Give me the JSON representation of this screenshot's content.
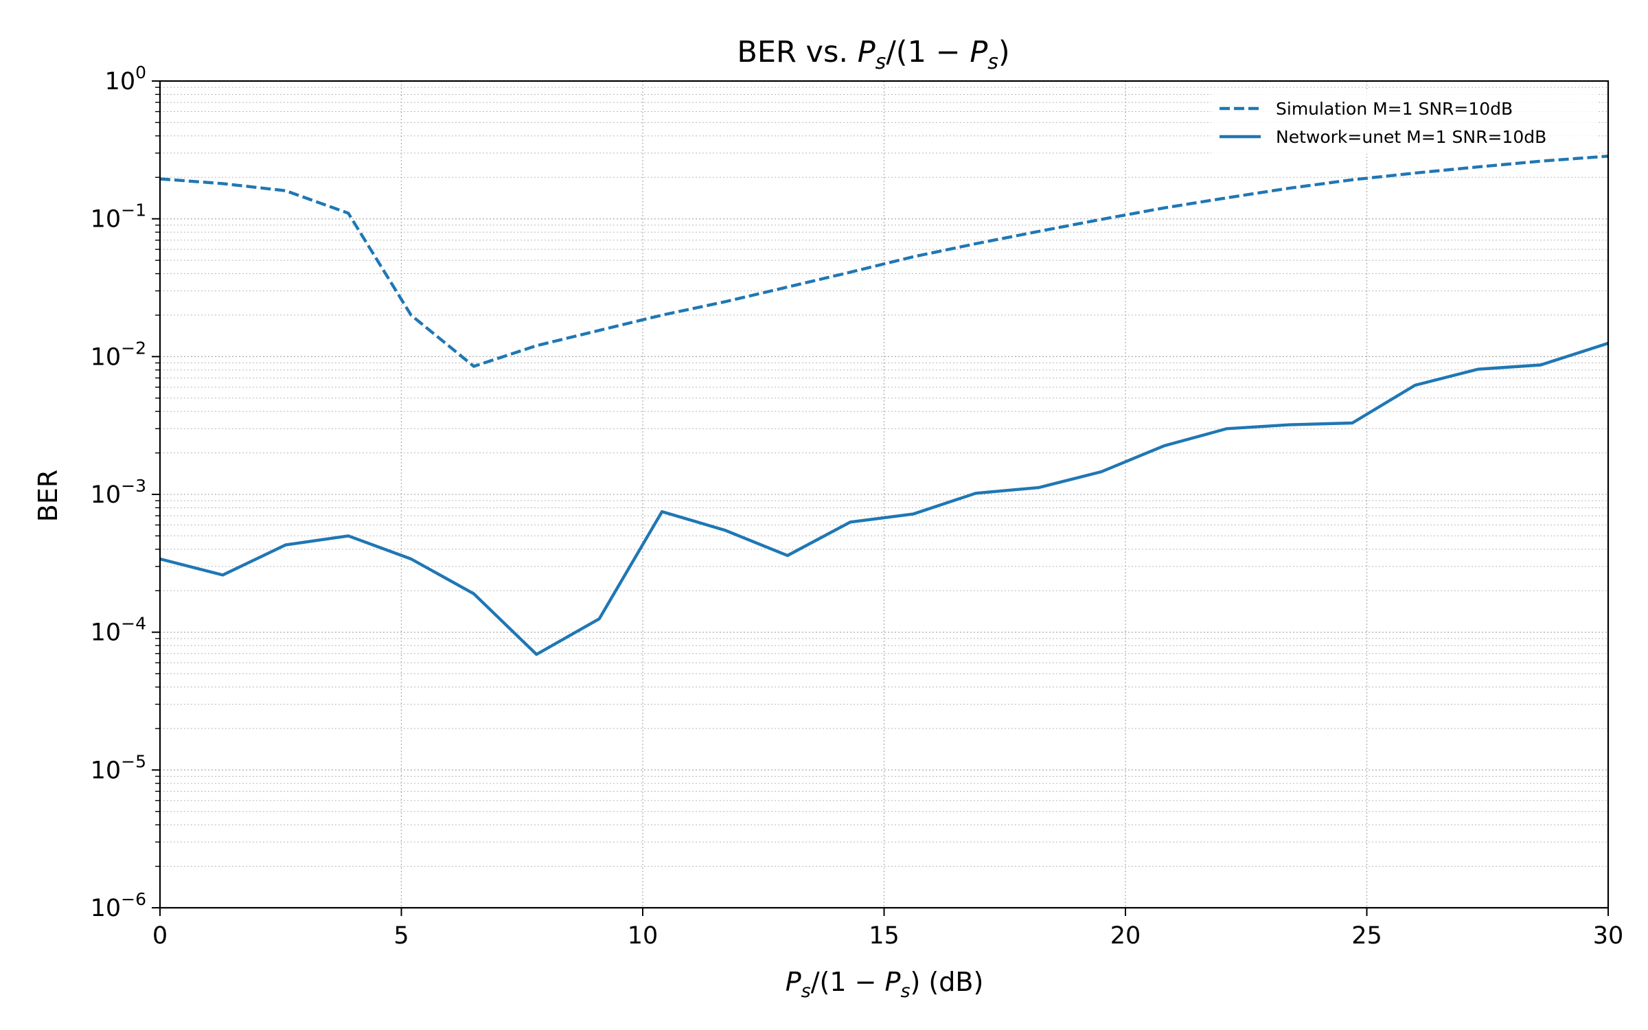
{
  "chart_data": {
    "type": "line",
    "title": "BER vs. P_s/(1 − P_s)",
    "xlabel": "P_s/(1 − P_s) (dB)",
    "ylabel": "BER",
    "xlim": [
      0,
      30
    ],
    "ylim": [
      1e-06,
      1
    ],
    "yscale": "log",
    "grid": true,
    "legend_position": "top-right",
    "x_ticks": [
      0,
      5,
      10,
      15,
      20,
      25,
      30
    ],
    "y_ticks": [
      1e-06,
      1e-05,
      0.0001,
      0.001,
      0.01,
      0.1,
      1
    ],
    "series": [
      {
        "name": "Simulation M=1 SNR=10dB",
        "color": "#1f77b4",
        "linestyle": "dashed",
        "x": [
          0,
          1.3,
          2.6,
          3.9,
          5.2,
          6.5,
          7.8,
          9.1,
          10.4,
          11.7,
          13.0,
          14.3,
          15.6,
          16.9,
          18.2,
          19.5,
          20.8,
          22.1,
          23.4,
          24.7,
          26.0,
          27.3,
          28.6,
          30.0
        ],
        "y": [
          0.195,
          0.18,
          0.16,
          0.11,
          0.02,
          0.0085,
          0.012,
          0.0155,
          0.02,
          0.025,
          0.032,
          0.041,
          0.053,
          0.066,
          0.081,
          0.099,
          0.12,
          0.142,
          0.167,
          0.192,
          0.215,
          0.238,
          0.262,
          0.285
        ]
      },
      {
        "name": "Network=unet M=1 SNR=10dB",
        "color": "#1f77b4",
        "linestyle": "solid",
        "x": [
          0,
          1.3,
          2.6,
          3.9,
          5.2,
          6.5,
          7.8,
          9.1,
          10.4,
          11.7,
          13.0,
          14.3,
          15.6,
          16.9,
          18.2,
          19.5,
          20.8,
          22.1,
          23.4,
          24.7,
          26.0,
          27.3,
          28.6,
          30.0
        ],
        "y": [
          0.00034,
          0.00026,
          0.00043,
          0.0005,
          0.00034,
          0.00019,
          6.9e-05,
          0.000125,
          0.00075,
          0.00055,
          0.00036,
          0.00063,
          0.00072,
          0.00102,
          0.00112,
          0.00146,
          0.00225,
          0.003,
          0.0032,
          0.0033,
          0.0062,
          0.0081,
          0.0087,
          0.0125
        ]
      }
    ]
  }
}
